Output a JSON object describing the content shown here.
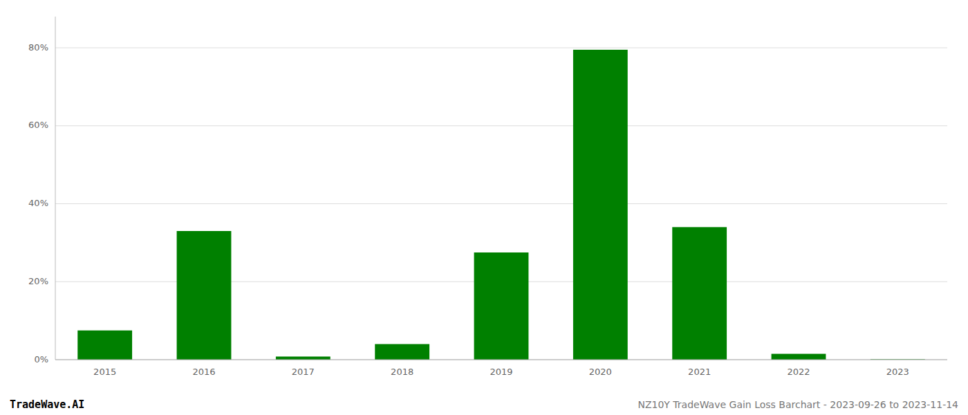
{
  "chart_data": {
    "type": "bar",
    "categories": [
      "2015",
      "2016",
      "2017",
      "2018",
      "2019",
      "2020",
      "2021",
      "2022",
      "2023"
    ],
    "values": [
      7.5,
      33.0,
      0.8,
      4.0,
      27.5,
      79.5,
      34.0,
      1.5,
      0.1
    ],
    "color": "#008000",
    "ylim": [
      0,
      88
    ],
    "yticks": [
      {
        "value": 0,
        "label": "0%"
      },
      {
        "value": 20,
        "label": "20%"
      },
      {
        "value": 40,
        "label": "40%"
      },
      {
        "value": 60,
        "label": "60%"
      },
      {
        "value": 80,
        "label": "80%"
      }
    ],
    "grid": true,
    "annotations": [
      "TradeWave.AI",
      "NZ10Y TradeWave Gain Loss Barchart - 2023-09-26 to 2023-11-14"
    ]
  }
}
